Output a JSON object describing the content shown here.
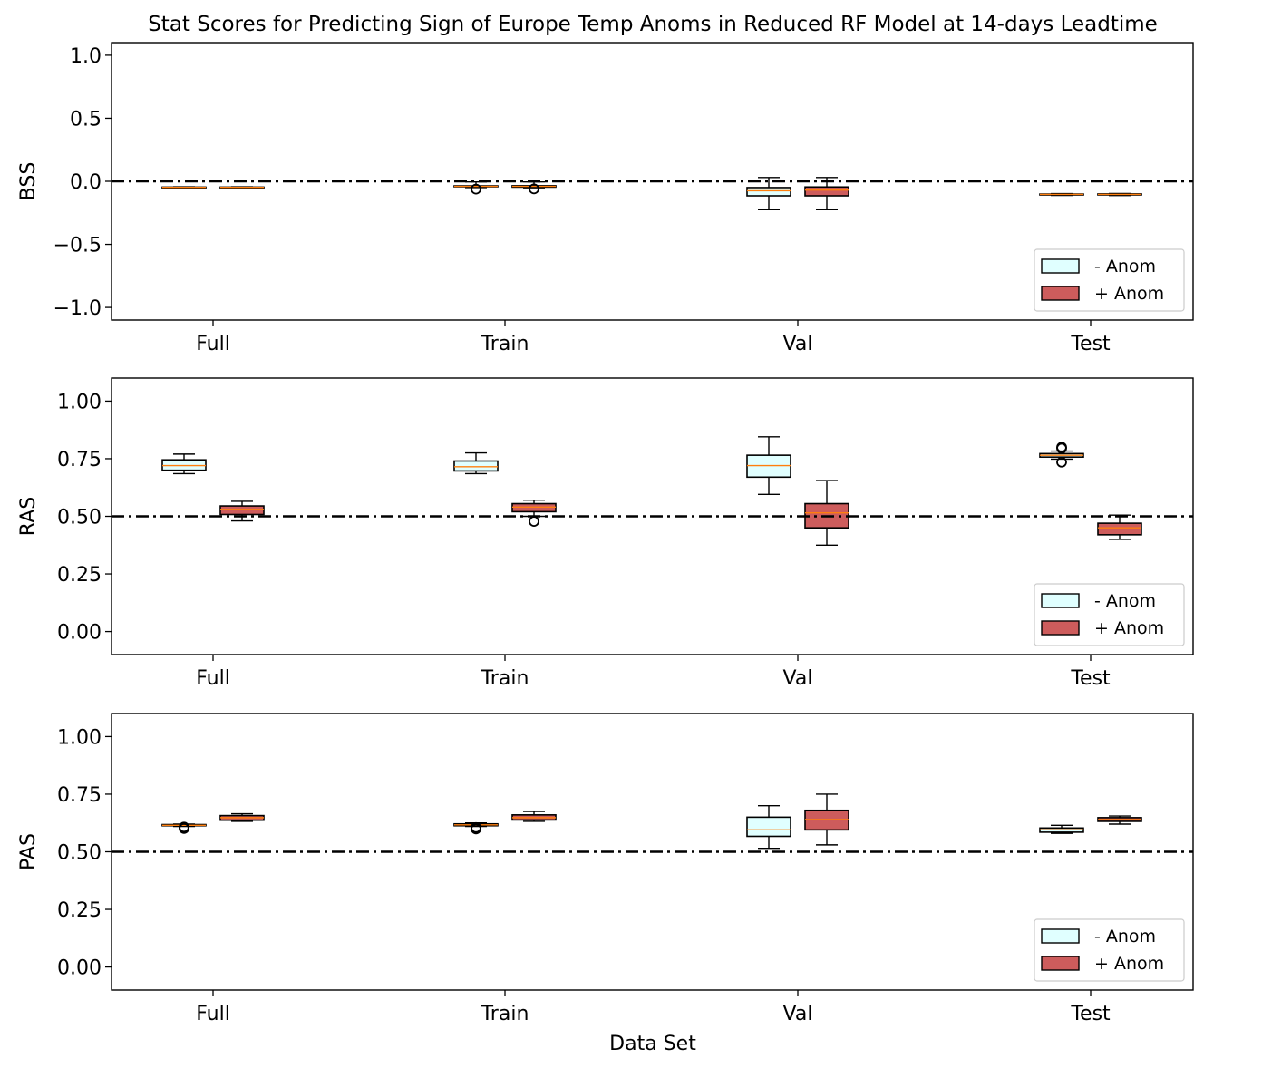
{
  "figure": {
    "title": "Stat Scores for Predicting Sign of Europe Temp Anoms in Reduced RF Model at 14-days Leadtime",
    "xlabel": "Data Set"
  },
  "chart_data": [
    {
      "type": "box",
      "ylabel": "BSS",
      "ylim": [
        -1.1,
        1.1
      ],
      "yticks": [
        -1.0,
        -0.5,
        0.0,
        0.5,
        1.0
      ],
      "yticklabels": [
        "−1.0",
        "−0.5",
        "0.0",
        "0.5",
        "1.0"
      ],
      "categories": [
        "Full",
        "Train",
        "Val",
        "Test"
      ],
      "reference_line": 0.0,
      "legend": {
        "placement": "lower-right",
        "entries": [
          "- Anom",
          "+ Anom"
        ]
      },
      "series": [
        {
          "name": "- Anom",
          "color": "#e0ffff",
          "boxes": [
            {
              "whislo": -0.052,
              "q1": -0.05,
              "med": -0.048,
              "q3": -0.046,
              "whishi": -0.044,
              "fliers": []
            },
            {
              "whislo": -0.05,
              "q1": -0.043,
              "med": -0.04,
              "q3": -0.036,
              "whishi": -0.005,
              "fliers": [
                -0.062
              ]
            },
            {
              "whislo": -0.225,
              "q1": -0.115,
              "med": -0.075,
              "q3": -0.05,
              "whishi": 0.03,
              "fliers": []
            },
            {
              "whislo": -0.112,
              "q1": -0.108,
              "med": -0.104,
              "q3": -0.101,
              "whishi": -0.098,
              "fliers": []
            }
          ]
        },
        {
          "name": "+ Anom",
          "color": "#cd5c5c",
          "boxes": [
            {
              "whislo": -0.052,
              "q1": -0.05,
              "med": -0.048,
              "q3": -0.046,
              "whishi": -0.044,
              "fliers": []
            },
            {
              "whislo": -0.052,
              "q1": -0.046,
              "med": -0.04,
              "q3": -0.035,
              "whishi": -0.005,
              "fliers": [
                -0.06
              ]
            },
            {
              "whislo": -0.225,
              "q1": -0.115,
              "med": -0.07,
              "q3": -0.045,
              "whishi": 0.03,
              "fliers": []
            },
            {
              "whislo": -0.113,
              "q1": -0.108,
              "med": -0.104,
              "q3": -0.1,
              "whishi": -0.097,
              "fliers": []
            }
          ]
        }
      ]
    },
    {
      "type": "box",
      "ylabel": "RAS",
      "ylim": [
        -0.1,
        1.1
      ],
      "yticks": [
        0.0,
        0.25,
        0.5,
        0.75,
        1.0
      ],
      "yticklabels": [
        "0.00",
        "0.25",
        "0.50",
        "0.75",
        "1.00"
      ],
      "categories": [
        "Full",
        "Train",
        "Val",
        "Test"
      ],
      "reference_line": 0.5,
      "legend": {
        "placement": "lower-right",
        "entries": [
          "- Anom",
          "+ Anom"
        ]
      },
      "series": [
        {
          "name": "- Anom",
          "color": "#e0ffff",
          "boxes": [
            {
              "whislo": 0.685,
              "q1": 0.7,
              "med": 0.72,
              "q3": 0.745,
              "whishi": 0.77,
              "fliers": []
            },
            {
              "whislo": 0.685,
              "q1": 0.697,
              "med": 0.715,
              "q3": 0.74,
              "whishi": 0.775,
              "fliers": []
            },
            {
              "whislo": 0.595,
              "q1": 0.67,
              "med": 0.72,
              "q3": 0.765,
              "whishi": 0.845,
              "fliers": []
            },
            {
              "whislo": 0.748,
              "q1": 0.757,
              "med": 0.765,
              "q3": 0.772,
              "whishi": 0.783,
              "fliers": [
                0.735,
                0.795,
                0.8
              ]
            }
          ]
        },
        {
          "name": "+ Anom",
          "color": "#cd5c5c",
          "boxes": [
            {
              "whislo": 0.48,
              "q1": 0.508,
              "med": 0.53,
              "q3": 0.545,
              "whishi": 0.565,
              "fliers": []
            },
            {
              "whislo": 0.5,
              "q1": 0.52,
              "med": 0.54,
              "q3": 0.555,
              "whishi": 0.57,
              "fliers": [
                0.478
              ]
            },
            {
              "whislo": 0.375,
              "q1": 0.45,
              "med": 0.515,
              "q3": 0.555,
              "whishi": 0.655,
              "fliers": []
            },
            {
              "whislo": 0.4,
              "q1": 0.42,
              "med": 0.45,
              "q3": 0.47,
              "whishi": 0.505,
              "fliers": []
            }
          ]
        }
      ]
    },
    {
      "type": "box",
      "ylabel": "PAS",
      "ylim": [
        -0.1,
        1.1
      ],
      "yticks": [
        0.0,
        0.25,
        0.5,
        0.75,
        1.0
      ],
      "yticklabels": [
        "0.00",
        "0.25",
        "0.50",
        "0.75",
        "1.00"
      ],
      "categories": [
        "Full",
        "Train",
        "Val",
        "Test"
      ],
      "reference_line": 0.5,
      "legend": {
        "placement": "lower-right",
        "entries": [
          "- Anom",
          "+ Anom"
        ]
      },
      "series": [
        {
          "name": "- Anom",
          "color": "#e0ffff",
          "boxes": [
            {
              "whislo": 0.61,
              "q1": 0.613,
              "med": 0.615,
              "q3": 0.618,
              "whishi": 0.62,
              "fliers": [
                0.601,
                0.607
              ]
            },
            {
              "whislo": 0.61,
              "q1": 0.613,
              "med": 0.617,
              "q3": 0.621,
              "whishi": 0.625,
              "fliers": [
                0.599,
                0.605
              ]
            },
            {
              "whislo": 0.515,
              "q1": 0.567,
              "med": 0.595,
              "q3": 0.65,
              "whishi": 0.7,
              "fliers": []
            },
            {
              "whislo": 0.58,
              "q1": 0.585,
              "med": 0.595,
              "q3": 0.603,
              "whishi": 0.615,
              "fliers": []
            }
          ]
        },
        {
          "name": "+ Anom",
          "color": "#cd5c5c",
          "boxes": [
            {
              "whislo": 0.632,
              "q1": 0.637,
              "med": 0.648,
              "q3": 0.657,
              "whishi": 0.665,
              "fliers": []
            },
            {
              "whislo": 0.632,
              "q1": 0.638,
              "med": 0.648,
              "q3": 0.66,
              "whishi": 0.675,
              "fliers": []
            },
            {
              "whislo": 0.53,
              "q1": 0.595,
              "med": 0.64,
              "q3": 0.68,
              "whishi": 0.75,
              "fliers": []
            },
            {
              "whislo": 0.62,
              "q1": 0.632,
              "med": 0.64,
              "q3": 0.648,
              "whishi": 0.655,
              "fliers": []
            }
          ]
        }
      ]
    }
  ]
}
